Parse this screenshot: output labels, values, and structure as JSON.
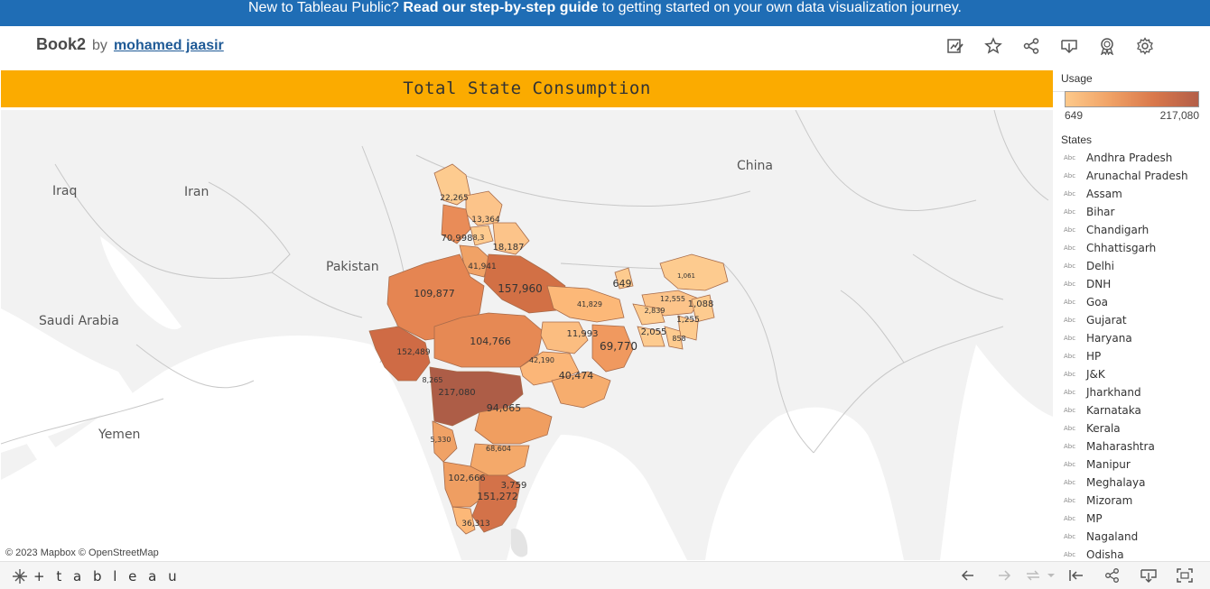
{
  "banner": {
    "prefix": "New to Tableau Public? ",
    "link": "Read our step-by-step guide",
    "suffix": " to getting started on your own data visualization journey."
  },
  "header": {
    "book": "Book2",
    "by": "by",
    "author": "mohamed jaasir",
    "icons": [
      "edit-icon",
      "star-icon",
      "share-icon",
      "download-icon",
      "badge-icon",
      "settings-icon"
    ]
  },
  "dashboard": {
    "title": "Total State Consumption",
    "attribution": "© 2023 Mapbox  © OpenStreetMap",
    "country_labels": [
      "China",
      "Iraq",
      "Iran",
      "Pakistan",
      "Saudi Arabia",
      "Yemen"
    ],
    "map_values": [
      "22,265",
      "13,364",
      "70,998",
      "8,3",
      "18,187",
      "41,941",
      "157,960",
      "109,877",
      "649",
      "1,061",
      "12,555",
      "1,088",
      "2,839",
      "1,255",
      "41,829",
      "11,993",
      "858",
      "2,055",
      "69,770",
      "104,766",
      "152,489",
      "42,190",
      "40,474",
      "8,265",
      "217,080",
      "94,065",
      "5,330",
      "68,604",
      "102,666",
      "3,759",
      "151,272",
      "36,313"
    ]
  },
  "legend": {
    "usage_title": "Usage",
    "usage_min": "649",
    "usage_max": "217,080",
    "gradient_colors": [
      "#fdc98a",
      "#f0a266",
      "#d9784b",
      "#b35e48"
    ],
    "states_title": "States",
    "abc": "Abc",
    "states": [
      "Andhra Pradesh",
      "Arunachal Pradesh",
      "Assam",
      "Bihar",
      "Chandigarh",
      "Chhattisgarh",
      "Delhi",
      "DNH",
      "Goa",
      "Gujarat",
      "Haryana",
      "HP",
      "J&K",
      "Jharkhand",
      "Karnataka",
      "Kerala",
      "Maharashtra",
      "Manipur",
      "Meghalaya",
      "Mizoram",
      "MP",
      "Nagaland",
      "Odisha"
    ]
  },
  "footer": {
    "logo_text": "+ t a b l e a u",
    "icons": [
      "undo-icon",
      "redo-icon",
      "revert-icon",
      "dropdown-icon",
      "reset-icon",
      "share-icon",
      "download-icon",
      "fullscreen-icon"
    ]
  }
}
